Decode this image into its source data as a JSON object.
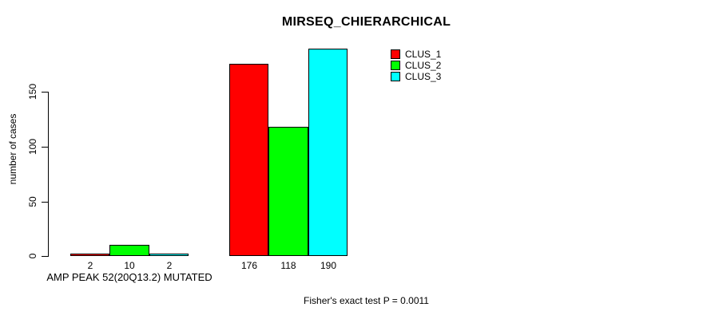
{
  "chart_data": {
    "type": "bar",
    "title": "MIRSEQ_CHIERARCHICAL",
    "ylabel": "number of cases",
    "yticks": [
      0,
      50,
      100,
      150
    ],
    "ylim": [
      0,
      190
    ],
    "grid": false,
    "legend_position": "top-right",
    "series": [
      {
        "name": "CLUS_1",
        "color": "#ff0000"
      },
      {
        "name": "CLUS_2",
        "color": "#00ff00"
      },
      {
        "name": "CLUS_3",
        "color": "#00ffff"
      }
    ],
    "groups": [
      {
        "label": "AMP PEAK 52(20Q13.2) MUTATED",
        "values": [
          2,
          10,
          2
        ]
      },
      {
        "label": "",
        "values": [
          176,
          118,
          190
        ]
      }
    ],
    "annotation": "Fisher's exact test P = 0.0011"
  }
}
